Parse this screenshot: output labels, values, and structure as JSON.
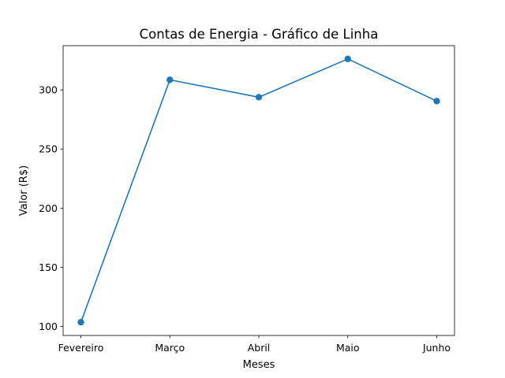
{
  "chart_data": {
    "type": "line",
    "title": "Contas de Energia - Gráfico de Linha",
    "xlabel": "Meses",
    "ylabel": "Valor (R$)",
    "categories": [
      "Fevereiro",
      "Março",
      "Abril",
      "Maio",
      "Junho"
    ],
    "series": [
      {
        "values": [
          103.5,
          308.5,
          293.8,
          326.2,
          290.5
        ],
        "color": "#1f77b4",
        "marker": "circle"
      }
    ],
    "yticks": [
      100,
      150,
      200,
      250,
      300
    ],
    "ylim": [
      92.3,
      337.4
    ],
    "grid": false,
    "legend": "none"
  }
}
